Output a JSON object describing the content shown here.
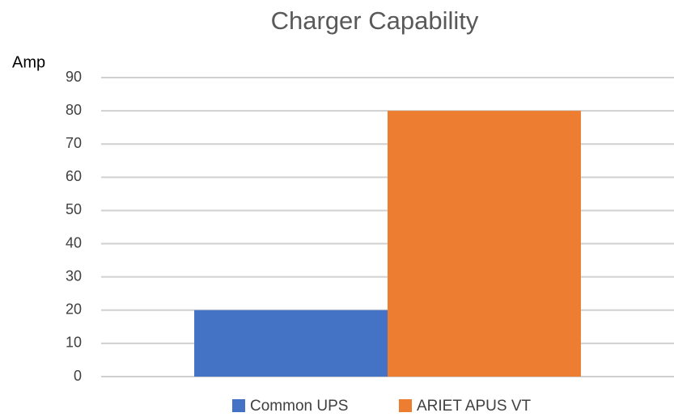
{
  "chart_data": {
    "type": "bar",
    "title": "Charger Capability",
    "y_label": "Amp",
    "categories": [
      null
    ],
    "series": [
      {
        "name": "Common UPS",
        "color": "#4472c4",
        "values": [
          20
        ]
      },
      {
        "name": "ARIET APUS VT",
        "color": "#ed7d31",
        "values": [
          80
        ]
      }
    ],
    "ylim": [
      0,
      90
    ],
    "yticks": [
      0,
      10,
      20,
      30,
      40,
      50,
      60,
      70,
      80,
      90
    ],
    "grid": true,
    "legend": "bottom"
  }
}
